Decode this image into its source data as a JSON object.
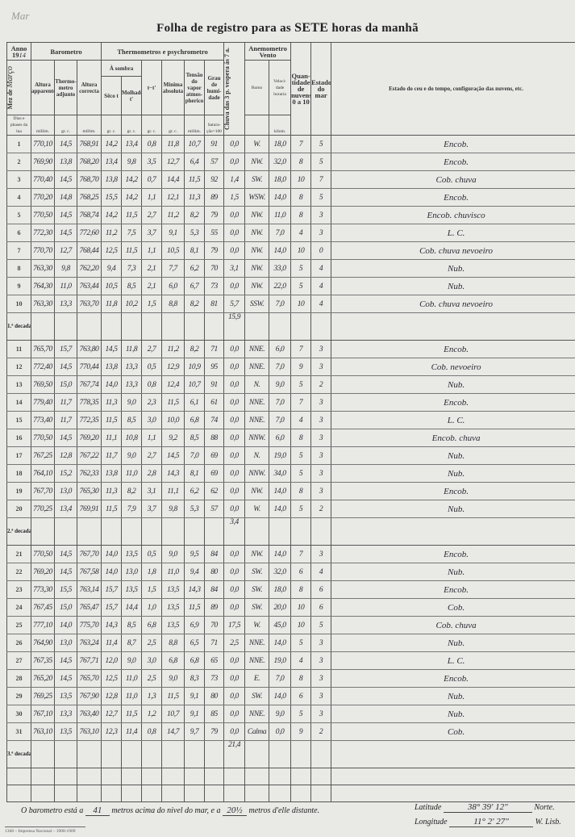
{
  "pencil_note": "Mar",
  "title": {
    "prefix": "Folha de registro para as",
    "hour": "SETE",
    "suffix": "horas da manhã"
  },
  "header": {
    "anno_label": "Anno 19",
    "anno_value": "14",
    "mez_label": "Mez de",
    "mez_value": "Março",
    "dias_label": "Dias e phases da lua",
    "barometro": "Barometro",
    "altura_apparente": "Altura apparente",
    "thermometro_adjunto": "Thermo-metro adjunto",
    "altura_correcta": "Altura correcta",
    "thermometros": "Thermometros e psychrometro",
    "a_sombra": "À sombra",
    "seco": "Sêco t",
    "molhado": "Molhado t'",
    "t_diff": "t−t'",
    "minima": "Minima absoluta",
    "tensao": "Tensão do vapor atmos-pherico",
    "grau": "Grau de humi-dade",
    "chuva": "Chuva das 3 p. vespera ás 7 a.",
    "anemometro": "Anemometro",
    "vento": "Vento",
    "rumo": "Rumo",
    "velocidade": "Veloci-dade horaria",
    "nuvens": "Quan-tidade de nuvens 0 a 10",
    "mar": "Estado do mar",
    "estado_ceu": "Estado do ceu e do tempo, configuração das nuvens, etc.",
    "units": {
      "millim": "millim.",
      "grc": "gr. c.",
      "saturacao": "Satura-ção=100",
      "kilom": "kilom."
    }
  },
  "rows": [
    {
      "day": "1",
      "v": [
        "770,10",
        "14,5",
        "768,91",
        "14,2",
        "13,4",
        "0,8",
        "11,8",
        "10,7",
        "91",
        "0,0",
        "W.",
        "18,0",
        "7",
        "5"
      ],
      "remark": "Encob."
    },
    {
      "day": "2",
      "v": [
        "769,90",
        "13,8",
        "768,20",
        "13,4",
        "9,8",
        "3,5",
        "12,7",
        "6,4",
        "57",
        "0,0",
        "NW.",
        "32,0",
        "8",
        "5"
      ],
      "remark": "Encob."
    },
    {
      "day": "3",
      "v": [
        "770,40",
        "14,5",
        "768,70",
        "13,8",
        "14,2",
        "0,7",
        "14,4",
        "11,5",
        "92",
        "1,4",
        "SW.",
        "18,0",
        "10",
        "7"
      ],
      "remark": "Cob. chuva"
    },
    {
      "day": "4",
      "v": [
        "770,20",
        "14,8",
        "768,25",
        "15,5",
        "14,2",
        "1,1",
        "12,1",
        "11,3",
        "89",
        "1,5",
        "WSW.",
        "14,0",
        "8",
        "5"
      ],
      "remark": "Encob."
    },
    {
      "day": "5",
      "v": [
        "770,50",
        "14,5",
        "768,74",
        "14,2",
        "11,5",
        "2,7",
        "11,2",
        "8,2",
        "79",
        "0,0",
        "NW.",
        "11,0",
        "8",
        "3"
      ],
      "remark": "Encob. chuvisco"
    },
    {
      "day": "6",
      "v": [
        "772,30",
        "14,5",
        "772,60",
        "11,2",
        "7,5",
        "3,7",
        "9,1",
        "5,3",
        "55",
        "0,0",
        "NW.",
        "7,0",
        "4",
        "3"
      ],
      "remark": "L. C."
    },
    {
      "day": "7",
      "v": [
        "770,70",
        "12,7",
        "768,44",
        "12,5",
        "11,5",
        "1,1",
        "10,5",
        "8,1",
        "79",
        "0,0",
        "NW.",
        "14,0",
        "10",
        "0"
      ],
      "remark": "Cob. chuva nevoeiro"
    },
    {
      "day": "8",
      "v": [
        "763,30",
        "9,8",
        "762,20",
        "9,4",
        "7,3",
        "2,1",
        "7,7",
        "6,2",
        "70",
        "3,1",
        "NW.",
        "33,0",
        "5",
        "4"
      ],
      "remark": "Nub."
    },
    {
      "day": "9",
      "v": [
        "764,30",
        "11,0",
        "763,44",
        "10,5",
        "8,5",
        "2,1",
        "6,0",
        "6,7",
        "73",
        "0,0",
        "NW.",
        "22,0",
        "5",
        "4"
      ],
      "remark": "Nub."
    },
    {
      "day": "10",
      "v": [
        "763,30",
        "13,3",
        "763,70",
        "11,8",
        "10,2",
        "1,5",
        "8,8",
        "8,2",
        "81",
        "5,7",
        "SSW.",
        "7,0",
        "10",
        "4"
      ],
      "remark": "Cob. chuva nevoeiro"
    },
    {
      "decade": "1.ª decada",
      "rain": "15,9"
    },
    {
      "day": "11",
      "v": [
        "765,70",
        "15,7",
        "763,80",
        "14,5",
        "11,8",
        "2,7",
        "11,2",
        "8,2",
        "71",
        "0,0",
        "NNE.",
        "6,0",
        "7",
        "3"
      ],
      "remark": "Encob."
    },
    {
      "day": "12",
      "v": [
        "772,40",
        "14,5",
        "770,44",
        "13,8",
        "13,3",
        "0,5",
        "12,9",
        "10,9",
        "95",
        "0,0",
        "NNE.",
        "7,0",
        "9",
        "3"
      ],
      "remark": "Cob. nevoeiro"
    },
    {
      "day": "13",
      "v": [
        "769,50",
        "15,0",
        "767,74",
        "14,0",
        "13,3",
        "0,8",
        "12,4",
        "10,7",
        "91",
        "0,0",
        "N.",
        "9,0",
        "5",
        "2"
      ],
      "remark": "Nub."
    },
    {
      "day": "14",
      "v": [
        "779,40",
        "11,7",
        "778,35",
        "11,3",
        "9,0",
        "2,3",
        "11,5",
        "6,1",
        "61",
        "0,0",
        "NNE.",
        "7,0",
        "7",
        "3"
      ],
      "remark": "Encob."
    },
    {
      "day": "15",
      "v": [
        "773,40",
        "11,7",
        "772,35",
        "11,5",
        "8,5",
        "3,0",
        "10,0",
        "6,8",
        "74",
        "0,0",
        "NNE.",
        "7,0",
        "4",
        "3"
      ],
      "remark": "L. C."
    },
    {
      "day": "16",
      "v": [
        "770,50",
        "14,5",
        "769,20",
        "11,1",
        "10,8",
        "1,1",
        "9,2",
        "8,5",
        "88",
        "0,0",
        "NNW.",
        "6,0",
        "8",
        "3"
      ],
      "remark": "Encob. chuva"
    },
    {
      "day": "17",
      "v": [
        "767,25",
        "12,8",
        "767,22",
        "11,7",
        "9,0",
        "2,7",
        "14,5",
        "7,0",
        "69",
        "0,0",
        "N.",
        "19,0",
        "5",
        "3"
      ],
      "remark": "Nub."
    },
    {
      "day": "18",
      "v": [
        "764,10",
        "15,2",
        "762,33",
        "13,8",
        "11,0",
        "2,8",
        "14,3",
        "8,1",
        "69",
        "0,0",
        "NNW.",
        "34,0",
        "5",
        "3"
      ],
      "remark": "Nub."
    },
    {
      "day": "19",
      "v": [
        "767,70",
        "13,0",
        "765,30",
        "11,3",
        "8,2",
        "3,1",
        "11,1",
        "6,2",
        "62",
        "0,0",
        "NW.",
        "14,0",
        "8",
        "3"
      ],
      "remark": "Encob."
    },
    {
      "day": "20",
      "v": [
        "770,25",
        "13,4",
        "769,91",
        "11,5",
        "7,9",
        "3,7",
        "9,8",
        "5,3",
        "57",
        "0,0",
        "W.",
        "14,0",
        "5",
        "2"
      ],
      "remark": "Nub."
    },
    {
      "decade": "2.ª decada",
      "rain": "3,4"
    },
    {
      "day": "21",
      "v": [
        "770,50",
        "14,5",
        "767,70",
        "14,0",
        "13,5",
        "0,5",
        "9,0",
        "9,5",
        "84",
        "0,0",
        "NW.",
        "14,0",
        "7",
        "3"
      ],
      "remark": "Encob."
    },
    {
      "day": "22",
      "v": [
        "769,20",
        "14,5",
        "767,58",
        "14,0",
        "13,0",
        "1,8",
        "11,0",
        "9,4",
        "80",
        "0,0",
        "SW.",
        "32,0",
        "6",
        "4"
      ],
      "remark": "Nub."
    },
    {
      "day": "23",
      "v": [
        "773,30",
        "15,5",
        "763,14",
        "15,7",
        "13,5",
        "1,5",
        "13,5",
        "14,3",
        "84",
        "0,0",
        "SW.",
        "18,0",
        "8",
        "6"
      ],
      "remark": "Encob."
    },
    {
      "day": "24",
      "v": [
        "767,45",
        "15,0",
        "765,47",
        "15,7",
        "14,4",
        "1,0",
        "13,5",
        "11,5",
        "89",
        "0,0",
        "SW.",
        "20,0",
        "10",
        "6"
      ],
      "remark": "Cob."
    },
    {
      "day": "25",
      "v": [
        "777,10",
        "14,0",
        "775,70",
        "14,3",
        "8,5",
        "6,8",
        "13,5",
        "6,9",
        "70",
        "17,5",
        "W.",
        "45,0",
        "10",
        "5"
      ],
      "remark": "Cob. chuva"
    },
    {
      "day": "26",
      "v": [
        "764,90",
        "13,0",
        "763,24",
        "11,4",
        "8,7",
        "2,5",
        "8,8",
        "6,5",
        "71",
        "2,5",
        "NNE.",
        "14,0",
        "5",
        "3"
      ],
      "remark": "Nub."
    },
    {
      "day": "27",
      "v": [
        "767,35",
        "14,5",
        "767,71",
        "12,0",
        "9,0",
        "3,0",
        "6,8",
        "6,8",
        "65",
        "0,0",
        "NNE.",
        "19,0",
        "4",
        "3"
      ],
      "remark": "L. C."
    },
    {
      "day": "28",
      "v": [
        "765,20",
        "14,5",
        "765,70",
        "12,5",
        "11,0",
        "2,5",
        "9,0",
        "8,3",
        "73",
        "0,0",
        "E.",
        "7,0",
        "8",
        "3"
      ],
      "remark": "Encob."
    },
    {
      "day": "29",
      "v": [
        "769,25",
        "13,5",
        "767,90",
        "12,8",
        "11,0",
        "1,3",
        "11,5",
        "9,1",
        "80",
        "0,0",
        "SW.",
        "14,0",
        "6",
        "3"
      ],
      "remark": "Nub."
    },
    {
      "day": "30",
      "v": [
        "767,10",
        "13,3",
        "763,40",
        "12,7",
        "11,5",
        "1,2",
        "10,7",
        "9,1",
        "85",
        "0,0",
        "NNE.",
        "9,0",
        "5",
        "3"
      ],
      "remark": "Nub."
    },
    {
      "day": "31",
      "v": [
        "763,10",
        "13,5",
        "763,10",
        "12,3",
        "11,4",
        "0,8",
        "14,7",
        "9,7",
        "79",
        "0,0",
        "Calma",
        "0,0",
        "9",
        "2"
      ],
      "remark": "Cob."
    },
    {
      "decade": "3.ª decada",
      "rain": "21,4"
    }
  ],
  "footer": {
    "text1": "O barometro está a",
    "altitude": "41",
    "text2": "metros acima do nivel do mar, e a",
    "distance": "20½",
    "text3": "metros d'elle distante.",
    "latitude_label": "Latitude",
    "latitude": "38°  39'  12\"",
    "latitude_suffix": "Norte.",
    "longitude_label": "Longitude",
    "longitude": "11°  2'  27\"",
    "longitude_suffix": "W. Lisb.",
    "printer": "1368 – Imprensa Nacional – 1908-1909"
  }
}
